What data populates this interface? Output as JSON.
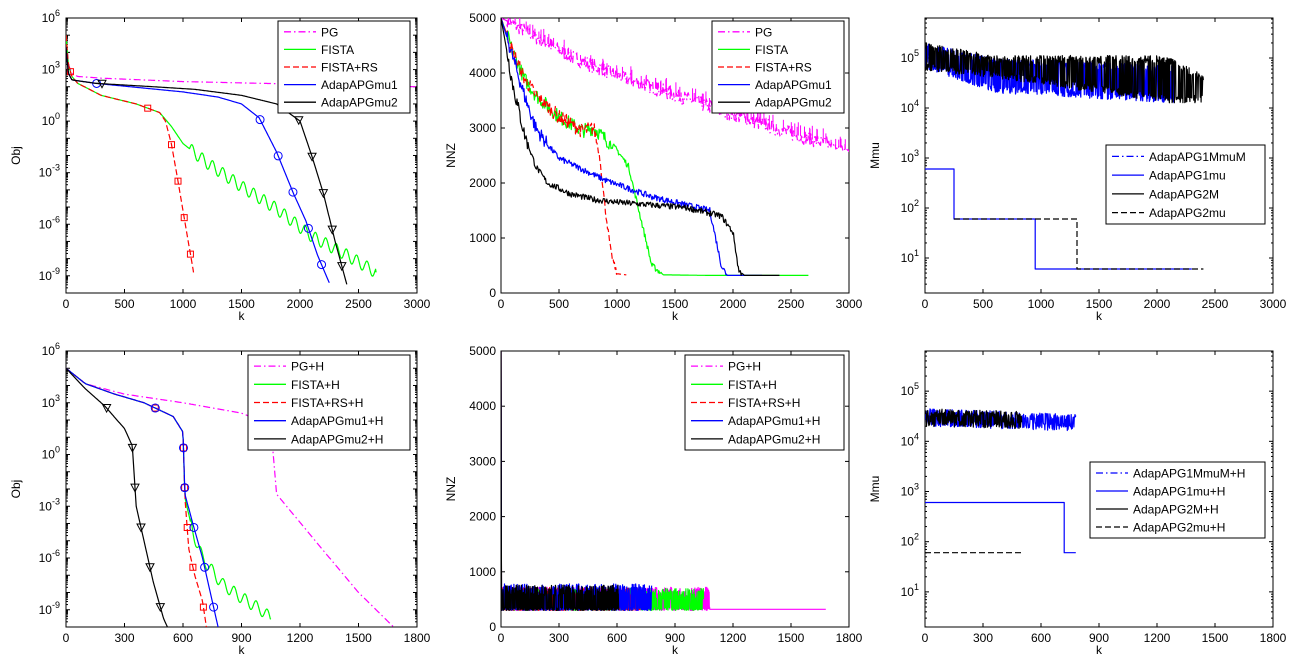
{
  "colors": {
    "PG": "#ff00ff",
    "FISTA": "#00ff00",
    "FISTA_RS": "#ff0000",
    "mu1": "#0000ff",
    "mu2": "#000000"
  },
  "chart_data": [
    {
      "id": "obj-top",
      "type": "line",
      "xlabel": "k",
      "ylabel": "Obj",
      "xlim": [
        0,
        3000
      ],
      "yscale": "log",
      "ylim_exp": [
        -10,
        6
      ],
      "xticks": [
        "0",
        "500",
        "1000",
        "1500",
        "2000",
        "2500",
        "3000"
      ],
      "xtick_values": [
        0,
        500,
        1000,
        1500,
        2000,
        2500,
        3000
      ],
      "ytick_exps": [
        6,
        3,
        0,
        -3,
        -6,
        -9
      ],
      "legend": [
        "PG",
        "FISTA",
        "FISTA+RS",
        "AdapAPGmu1",
        "AdapAPGmu2"
      ],
      "legend_position": "top-right",
      "series": [
        {
          "name": "PG",
          "style": "dashdot",
          "color": "#ff00ff",
          "x": [
            0,
            20,
            50,
            100,
            300,
            1000,
            2000,
            3000
          ],
          "y": [
            5,
            3.3,
            2.8,
            2.6,
            2.5,
            2.3,
            2.15,
            2.0
          ]
        },
        {
          "name": "FISTA",
          "style": "solid",
          "color": "#00ff00",
          "x": [
            0,
            20,
            50,
            100,
            300,
            600,
            800,
            900,
            1000,
            1200,
            1500,
            1800,
            2100,
            2400,
            2650
          ],
          "y": [
            5,
            3.3,
            2.6,
            2.2,
            1.5,
            1.0,
            0.5,
            -0.3,
            -1.3,
            -2.4,
            -3.8,
            -5.1,
            -6.7,
            -7.8,
            -8.8
          ]
        },
        {
          "name": "FISTA+RS",
          "style": "dashed",
          "color": "#ff0000",
          "x": [
            0,
            20,
            50,
            100,
            300,
            600,
            800,
            850,
            900,
            950,
            1000,
            1050,
            1090
          ],
          "y": [
            5,
            3.3,
            2.6,
            2.2,
            1.5,
            1.0,
            0.5,
            0.0,
            -1.3,
            -3.2,
            -5.2,
            -7.2,
            -8.8
          ]
        },
        {
          "name": "AdapAPGmu1",
          "style": "solid",
          "color": "#0000ff",
          "x": [
            0,
            20,
            50,
            250,
            700,
            1000,
            1300,
            1500,
            1650,
            1800,
            1950,
            2050,
            2150,
            2250
          ],
          "y": [
            4.3,
            2.8,
            2.4,
            2.2,
            1.9,
            1.7,
            1.4,
            1.0,
            0.2,
            -1.8,
            -4.3,
            -5.8,
            -7.8,
            -9.4
          ]
        },
        {
          "name": "AdapAPGmu2",
          "style": "solid",
          "color": "#000000",
          "x": [
            0,
            20,
            50,
            250,
            750,
            1100,
            1500,
            1800,
            2000,
            2100,
            2200,
            2300,
            2400
          ],
          "y": [
            4.3,
            2.8,
            2.4,
            2.2,
            2.0,
            1.85,
            1.5,
            1.0,
            0.0,
            -2.0,
            -4.2,
            -7.0,
            -9.5
          ]
        }
      ]
    },
    {
      "id": "nnz-top",
      "type": "line",
      "xlabel": "k",
      "ylabel": "NNZ",
      "xlim": [
        0,
        3000
      ],
      "ylim": [
        0,
        5000
      ],
      "xticks": [
        "0",
        "500",
        "1000",
        "1500",
        "2000",
        "2500",
        "3000"
      ],
      "xtick_values": [
        0,
        500,
        1000,
        1500,
        2000,
        2500,
        3000
      ],
      "yticks": [
        "0",
        "1000",
        "2000",
        "3000",
        "4000",
        "5000"
      ],
      "ytick_values": [
        0,
        1000,
        2000,
        3000,
        4000,
        5000
      ],
      "legend": [
        "PG",
        "FISTA",
        "FISTA+RS",
        "AdapAPGmu1",
        "AdapAPGmu2"
      ],
      "legend_position": "top-right",
      "series": [
        {
          "name": "PG",
          "style": "dashdot",
          "color": "#ff00ff",
          "x": [
            0,
            100,
            300,
            600,
            1000,
            1500,
            2000,
            2500,
            3000
          ],
          "y": [
            5000,
            4900,
            4650,
            4300,
            3950,
            3600,
            3250,
            2900,
            2600
          ]
        },
        {
          "name": "FISTA",
          "style": "solid",
          "color": "#00ff00",
          "x": [
            0,
            100,
            200,
            300,
            500,
            700,
            800,
            900,
            1000,
            1100,
            1200,
            1300,
            1400,
            1800,
            2200,
            2650
          ],
          "y": [
            5000,
            4400,
            3900,
            3600,
            3200,
            2950,
            3000,
            2800,
            2600,
            2300,
            1400,
            500,
            330,
            320,
            320,
            320
          ]
        },
        {
          "name": "FISTA+RS",
          "style": "dashed",
          "color": "#ff0000",
          "x": [
            0,
            100,
            200,
            300,
            500,
            700,
            800,
            850,
            900,
            950,
            1000,
            1080
          ],
          "y": [
            5000,
            4400,
            3900,
            3600,
            3200,
            2950,
            3000,
            2500,
            1500,
            700,
            350,
            330
          ]
        },
        {
          "name": "AdapAPGmu1",
          "style": "solid",
          "color": "#0000ff",
          "x": [
            0,
            100,
            200,
            300,
            400,
            500,
            700,
            900,
            1100,
            1300,
            1500,
            1700,
            1800,
            1900,
            1950,
            2000,
            2100,
            2250
          ],
          "y": [
            5000,
            4300,
            3600,
            3000,
            2700,
            2450,
            2250,
            2050,
            1900,
            1750,
            1650,
            1550,
            1500,
            500,
            320,
            320,
            320,
            320
          ]
        },
        {
          "name": "AdapAPGmu2",
          "style": "solid",
          "color": "#000000",
          "x": [
            0,
            100,
            200,
            300,
            400,
            600,
            800,
            1000,
            1300,
            1600,
            1900,
            2000,
            2050,
            2100,
            2200,
            2400
          ],
          "y": [
            5000,
            3800,
            2900,
            2300,
            2000,
            1800,
            1700,
            1650,
            1600,
            1550,
            1400,
            1100,
            400,
            320,
            320,
            320
          ]
        }
      ]
    },
    {
      "id": "mmu-top",
      "type": "line",
      "xlabel": "k",
      "ylabel": "Mmu",
      "xlim": [
        0,
        3000
      ],
      "yscale": "log",
      "ylim_exp": [
        0.3,
        5.8
      ],
      "xticks": [
        "0",
        "500",
        "1000",
        "1500",
        "2000",
        "2500",
        "3000"
      ],
      "xtick_values": [
        0,
        500,
        1000,
        1500,
        2000,
        2500,
        3000
      ],
      "ytick_exps": [
        1,
        2,
        3,
        4,
        5
      ],
      "legend": [
        "AdapAPG1MmuM",
        "AdapAPG1mu",
        "AdapAPG2M",
        "AdapAPG2mu"
      ],
      "legend_position": "center-right",
      "series": [
        {
          "name": "AdapAPG1MmuM",
          "style": "dashdot",
          "color": "#0000ff",
          "band": [
            [
              0,
              4.8,
              5.3
            ],
            [
              600,
              4.3,
              5.0
            ],
            [
              2150,
              4.1,
              4.85
            ]
          ],
          "x_end": 2150
        },
        {
          "name": "AdapAPG1mu",
          "style": "solid",
          "color": "#0000ff",
          "x": [
            0,
            250,
            250,
            950,
            950,
            2300
          ],
          "y": [
            2.78,
            2.78,
            1.78,
            1.78,
            0.78,
            0.78
          ]
        },
        {
          "name": "AdapAPG2M",
          "style": "solid",
          "color": "#000000",
          "band": [
            [
              0,
              4.75,
              5.3
            ],
            [
              600,
              4.6,
              5.05
            ],
            [
              2100,
              4.1,
              5.05
            ],
            [
              2400,
              4.1,
              4.65
            ]
          ],
          "x_end": 2400
        },
        {
          "name": "AdapAPG2mu",
          "style": "dashed",
          "color": "#000000",
          "x": [
            250,
            1310,
            1310,
            2400
          ],
          "y": [
            1.78,
            1.78,
            0.78,
            0.78
          ]
        }
      ]
    },
    {
      "id": "obj-bottom",
      "type": "line",
      "xlabel": "k",
      "ylabel": "Obj",
      "xlim": [
        0,
        1800
      ],
      "yscale": "log",
      "ylim_exp": [
        -10,
        6
      ],
      "xticks": [
        "0",
        "300",
        "600",
        "900",
        "1200",
        "1500",
        "1800"
      ],
      "xtick_values": [
        0,
        300,
        600,
        900,
        1200,
        1500,
        1800
      ],
      "ytick_exps": [
        6,
        3,
        0,
        -3,
        -6,
        -9
      ],
      "legend": [
        "PG+H",
        "FISTA+H",
        "FISTA+RS+H",
        "AdapAPGmu1+H",
        "AdapAPGmu2+H"
      ],
      "legend_position": "top-right",
      "series": [
        {
          "name": "PG+H",
          "style": "dashdot",
          "color": "#ff00ff",
          "x": [
            0,
            100,
            300,
            600,
            900,
            1050,
            1080,
            1300,
            1500,
            1680
          ],
          "y": [
            5,
            4.1,
            3.5,
            3.0,
            2.4,
            1.7,
            -2.3,
            -5.3,
            -8.0,
            -10.0
          ]
        },
        {
          "name": "FISTA+H",
          "style": "solid",
          "color": "#00ff00",
          "x": [
            0,
            100,
            250,
            400,
            550,
            600,
            610,
            650,
            700,
            800,
            900,
            1000,
            1050
          ],
          "y": [
            5,
            4.1,
            3.5,
            3.0,
            2.2,
            1.3,
            -2.5,
            -4.5,
            -6.0,
            -7.5,
            -8.3,
            -9.0,
            -9.5
          ]
        },
        {
          "name": "FISTA+RS+H",
          "style": "dashed",
          "color": "#ff0000",
          "x": [
            0,
            100,
            250,
            400,
            550,
            600,
            610,
            630,
            660,
            700,
            720
          ],
          "y": [
            5,
            4.1,
            3.5,
            3.0,
            2.2,
            1.3,
            -2.5,
            -5.5,
            -7.0,
            -8.5,
            -10.0
          ]
        },
        {
          "name": "AdapAPGmu1+H",
          "style": "solid",
          "color": "#0000ff",
          "x": [
            0,
            100,
            250,
            400,
            550,
            600,
            610,
            650,
            700,
            740,
            780
          ],
          "y": [
            5,
            4.1,
            3.5,
            3.0,
            2.2,
            1.3,
            -2.3,
            -4.0,
            -6.0,
            -8.0,
            -10.0
          ]
        },
        {
          "name": "AdapAPGmu2+H",
          "style": "solid",
          "color": "#000000",
          "x": [
            0,
            100,
            200,
            300,
            340,
            360,
            400,
            450,
            500,
            520
          ],
          "y": [
            5,
            3.8,
            2.8,
            1.5,
            0.5,
            -3.0,
            -5.0,
            -7.5,
            -9.5,
            -10.0
          ]
        }
      ]
    },
    {
      "id": "nnz-bottom",
      "type": "line",
      "xlabel": "k",
      "ylabel": "NNZ",
      "xlim": [
        0,
        1800
      ],
      "ylim": [
        0,
        5000
      ],
      "xticks": [
        "0",
        "300",
        "600",
        "900",
        "1200",
        "1500",
        "1800"
      ],
      "xtick_values": [
        0,
        300,
        600,
        900,
        1200,
        1500,
        1800
      ],
      "yticks": [
        "0",
        "1000",
        "2000",
        "3000",
        "4000",
        "5000"
      ],
      "ytick_values": [
        0,
        1000,
        2000,
        3000,
        4000,
        5000
      ],
      "legend": [
        "PG+H",
        "FISTA+H",
        "FISTA+RS+H",
        "AdapAPGmu1+H",
        "AdapAPGmu2+H"
      ],
      "legend_position": "top-right",
      "series": [
        {
          "name": "PG+H",
          "style": "dashdot",
          "color": "#ff00ff",
          "x_end": 1080,
          "tail": [
            1080,
            1680,
            320
          ],
          "low": 300,
          "high": 720
        },
        {
          "name": "FISTA+H",
          "style": "solid",
          "color": "#00ff00",
          "x_end": 1050,
          "low": 300,
          "high": 700
        },
        {
          "name": "FISTA+RS+H",
          "style": "dashed",
          "color": "#ff0000",
          "x_end": 720,
          "low": 300,
          "high": 720
        },
        {
          "name": "AdapAPGmu1+H",
          "style": "solid",
          "color": "#0000ff",
          "x_end": 780,
          "low": 300,
          "high": 780
        },
        {
          "name": "AdapAPGmu2+H",
          "style": "solid",
          "color": "#000000",
          "x_end": 610,
          "low": 300,
          "high": 760
        }
      ]
    },
    {
      "id": "mmu-bottom",
      "type": "line",
      "xlabel": "k",
      "ylabel": "Mmu",
      "xlim": [
        0,
        1800
      ],
      "yscale": "log",
      "ylim_exp": [
        0.3,
        5.8
      ],
      "xticks": [
        "0",
        "300",
        "600",
        "900",
        "1200",
        "1500",
        "1800"
      ],
      "xtick_values": [
        0,
        300,
        600,
        900,
        1200,
        1500,
        1800
      ],
      "ytick_exps": [
        1,
        2,
        3,
        4,
        5
      ],
      "legend": [
        "AdapAPG1MmuM+H",
        "AdapAPG1mu+H",
        "AdapAPG2M+H",
        "AdapAPG2mu+H"
      ],
      "legend_position": "center-right",
      "series": [
        {
          "name": "AdapAPG1MmuM+H",
          "style": "dashdot",
          "color": "#0000ff",
          "band": [
            [
              0,
              4.3,
              4.65
            ],
            [
              780,
              4.2,
              4.55
            ]
          ],
          "x_end": 780
        },
        {
          "name": "AdapAPG1mu+H",
          "style": "solid",
          "color": "#0000ff",
          "x": [
            0,
            720,
            720,
            780
          ],
          "y": [
            2.78,
            2.78,
            1.78,
            1.78
          ]
        },
        {
          "name": "AdapAPG2M+H",
          "style": "solid",
          "color": "#000000",
          "band": [
            [
              0,
              4.3,
              4.65
            ],
            [
              500,
              4.25,
              4.6
            ]
          ],
          "x_end": 500
        },
        {
          "name": "AdapAPG2mu+H",
          "style": "dashed",
          "color": "#000000",
          "x": [
            0,
            500
          ],
          "y": [
            1.78,
            1.78
          ]
        }
      ]
    }
  ]
}
